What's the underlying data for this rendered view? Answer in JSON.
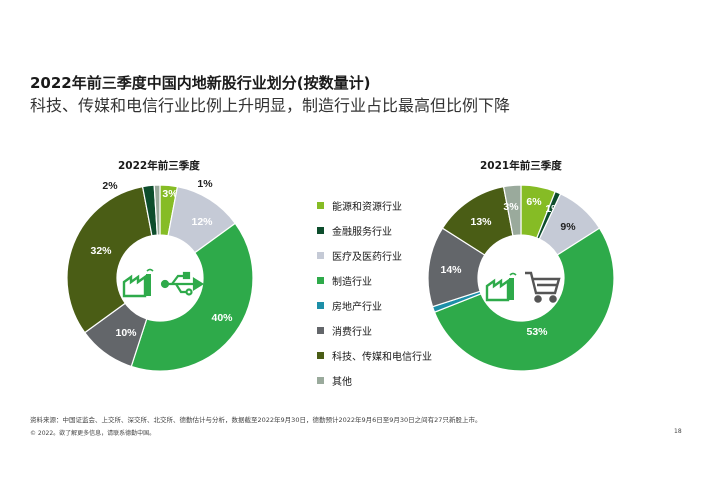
{
  "title": "2022年前三季度中国内地新股行业划分(按数量计)",
  "subtitle": "科技、传媒和电信行业比例上升明显，制造行业占比最高但比例下降",
  "colors": {
    "能源和资源行业": "#86bc25",
    "金融服务行业": "#0d4d2c",
    "医疗及医药行业": "#c5cad6",
    "制造行业": "#2eaa4a",
    "房地产行业": "#1d8fa8",
    "消费行业": "#63666a",
    "科技、传媒和电信行业": "#4a5d15",
    "其他": "#9aaa9c"
  },
  "chart_data": [
    {
      "type": "pie",
      "title": "2022年前三季度",
      "slices": [
        {
          "label": "能源和资源行业",
          "value": 3,
          "text": "3%"
        },
        {
          "label": "金融服务行业",
          "value": 0,
          "text": ""
        },
        {
          "label": "医疗及医药行业",
          "value": 12,
          "text": "12%"
        },
        {
          "label": "制造行业",
          "value": 40,
          "text": "40%"
        },
        {
          "label": "房地产行业",
          "value": 0,
          "text": ""
        },
        {
          "label": "消费行业",
          "value": 10,
          "text": "10%"
        },
        {
          "label": "科技、传媒和电信行业",
          "value": 32,
          "text": "32%"
        },
        {
          "label": "其他",
          "value": 1,
          "text": "1%"
        },
        {
          "label": "金融服务行业",
          "value": 2,
          "text": "2%"
        }
      ]
    },
    {
      "type": "pie",
      "title": "2021年前三季度",
      "slices": [
        {
          "label": "能源和资源行业",
          "value": 6,
          "text": "6%"
        },
        {
          "label": "金融服务行业",
          "value": 1,
          "text": "1%"
        },
        {
          "label": "医疗及医药行业",
          "value": 9,
          "text": "9%"
        },
        {
          "label": "制造行业",
          "value": 53,
          "text": "53%"
        },
        {
          "label": "房地产行业",
          "value": 1,
          "text": ""
        },
        {
          "label": "消费行业",
          "value": 14,
          "text": "14%"
        },
        {
          "label": "科技、传媒和电信行业",
          "value": 13,
          "text": "13%"
        },
        {
          "label": "其他",
          "value": 3,
          "text": "3%"
        }
      ]
    }
  ],
  "legend": [
    "能源和资源行业",
    "金融服务行业",
    "医疗及医药行业",
    "制造行业",
    "房地产行业",
    "消费行业",
    "科技、传媒和电信行业",
    "其他"
  ],
  "icons": [
    "factory-icon",
    "usb-icon",
    "shopping-cart-icon"
  ],
  "footer": {
    "source": "资料来源：中国证监会、上交所、深交所、北交所、德勤估计与分析，数据截至2022年9月30日，德勤预计2022年9月6日至9月30日之间有27只新股上市。",
    "copyright": "© 2022。欲了解更多信息，请联系德勤中国。",
    "page": "18"
  }
}
